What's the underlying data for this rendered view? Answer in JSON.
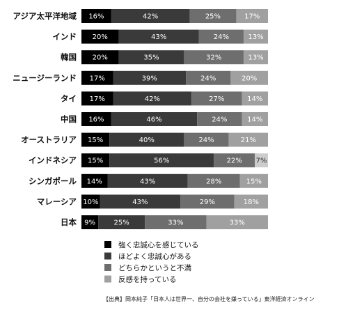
{
  "chart_data": {
    "type": "bar",
    "orientation": "horizontal",
    "stacked": true,
    "percent": true,
    "categories": [
      "アジア太平洋地域",
      "インド",
      "韓国",
      "ニュージーランド",
      "タイ",
      "中国",
      "オーストラリア",
      "インドネシア",
      "シンガポール",
      "マレーシア",
      "日本"
    ],
    "series": [
      {
        "name": "強く忠誠心を感じている",
        "color": "#000000",
        "values": [
          16,
          20,
          20,
          17,
          17,
          16,
          15,
          15,
          14,
          10,
          9
        ]
      },
      {
        "name": "ほどよく忠誠心がある",
        "color": "#3a3a3a",
        "values": [
          42,
          43,
          35,
          39,
          42,
          46,
          40,
          56,
          43,
          43,
          25
        ]
      },
      {
        "name": "どちらかというと不満",
        "color": "#6e6e6e",
        "values": [
          25,
          24,
          32,
          24,
          27,
          24,
          24,
          22,
          28,
          29,
          33
        ]
      },
      {
        "name": "反感を持っている",
        "color": "#a0a0a0",
        "values": [
          17,
          13,
          13,
          20,
          14,
          14,
          21,
          7,
          15,
          18,
          33
        ]
      }
    ],
    "last_series_light_color": "#cccccc",
    "value_suffix": "%",
    "legend_position": "bottom",
    "grid": false
  },
  "source_text": "【出典】岡本純子「日本人は世界一、自分の会社を嫌っている」東洋経済オンライン"
}
